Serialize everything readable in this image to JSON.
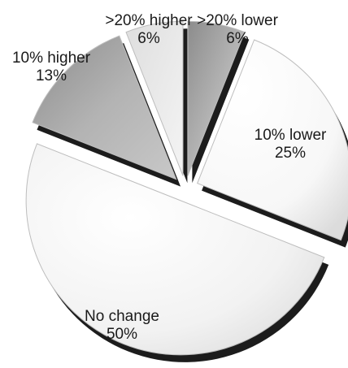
{
  "chart_data": {
    "type": "pie",
    "style": "exploded-3d",
    "slices": [
      {
        "label": ">20% lower",
        "value": 6,
        "value_label": "6%",
        "color": "#a9a9a9",
        "order": 0
      },
      {
        "label": "10% lower",
        "value": 25,
        "value_label": "25%",
        "color": "#ffffff",
        "order": 1
      },
      {
        "label": "No change",
        "value": 50,
        "value_label": "50%",
        "color": "#f2f2f2",
        "order": 2
      },
      {
        "label": "10% higher",
        "value": 13,
        "value_label": "13%",
        "color": "#a6a6a6",
        "order": 3
      },
      {
        "label": ">20% higher",
        "value": 6,
        "value_label": "6%",
        "color": "#ececec",
        "order": 4
      }
    ],
    "edge_color": "#1c1c1c",
    "outline_color": "#bdbdbd"
  }
}
